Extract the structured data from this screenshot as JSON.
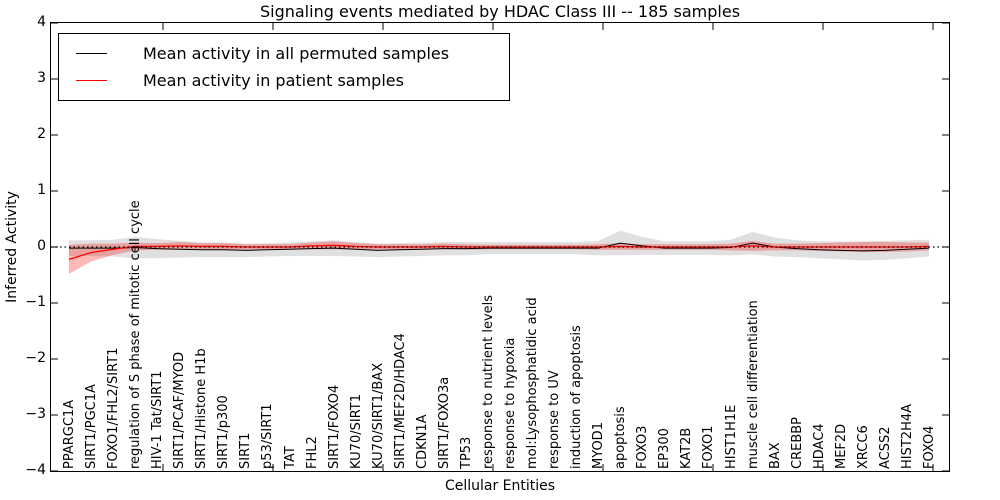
{
  "title": "Signaling events mediated by HDAC Class III -- 185 samples",
  "legend": [
    {
      "label": "Mean activity in all permuted samples",
      "color": "#000000"
    },
    {
      "label": "Mean activity in patient samples",
      "color": "#ff0000"
    }
  ],
  "colors": {
    "permuted_line": "#000000",
    "permuted_band": "rgba(0,0,0,0.12)",
    "patient_line": "#ff0000",
    "patient_band": "rgba(255,0,0,0.28)",
    "zero_line": "#000000"
  },
  "chart_data": {
    "type": "line",
    "title": "Signaling events mediated by HDAC Class III -- 185 samples",
    "xlabel": "Cellular Entities",
    "ylabel": "Inferred Activity",
    "ylim": [
      -4,
      4
    ],
    "ytick_labels": [
      "4",
      "3",
      "2",
      "1",
      "0",
      "−1",
      "−2",
      "−3",
      "−4"
    ],
    "ytick_values": [
      4,
      3,
      2,
      1,
      0,
      -1,
      -2,
      -3,
      -4
    ],
    "grid": false,
    "legend_position": "upper left",
    "zero_reference_line": 0,
    "categories": [
      "PPARGC1A",
      "SIRT1/PGC1A",
      "FOXO1/FHL2/SIRT1",
      "regulation of S phase of mitotic cell cycle",
      "HIV-1 Tat/SIRT1",
      "SIRT1/PCAF/MYOD",
      "SIRT1/Histone H1b",
      "SIRT1/p300",
      "SIRT1",
      "p53/SIRT1",
      "TAT",
      "FHL2",
      "SIRT1/FOXO4",
      "KU70/SIRT1",
      "KU70/SIRT1/BAX",
      "SIRT1/MEF2D/HDAC4",
      "CDKN1A",
      "SIRT1/FOXO3a",
      "TP53",
      "response to nutrient levels",
      "response to hypoxia",
      "mol:Lysophosphatidic acid",
      "response to UV",
      "induction of apoptosis",
      "MYOD1",
      "apoptosis",
      "FOXO3",
      "EP300",
      "KAT2B",
      "FOXO1",
      "HIST1H1E",
      "muscle cell differentiation",
      "BAX",
      "CREBBP",
      "HDAC4",
      "MEF2D",
      "XRCC6",
      "ACSS2",
      "HIST2H4A",
      "FOXO4"
    ],
    "series": [
      {
        "name": "Mean activity in all permuted samples",
        "color": "#000000",
        "values": [
          -0.02,
          -0.02,
          -0.02,
          -0.01,
          -0.03,
          -0.04,
          -0.05,
          -0.05,
          -0.06,
          -0.05,
          -0.04,
          -0.03,
          -0.02,
          -0.04,
          -0.06,
          -0.05,
          -0.04,
          -0.03,
          -0.03,
          -0.02,
          -0.02,
          -0.02,
          -0.02,
          -0.02,
          -0.02,
          0.07,
          0.02,
          -0.02,
          -0.02,
          -0.02,
          -0.01,
          0.07,
          0.0,
          -0.03,
          -0.05,
          -0.06,
          -0.07,
          -0.06,
          -0.04,
          -0.02
        ],
        "band_upper": [
          0.12,
          0.12,
          0.13,
          0.18,
          0.14,
          0.11,
          0.08,
          0.08,
          0.06,
          0.07,
          0.08,
          0.1,
          0.12,
          0.09,
          0.06,
          0.07,
          0.08,
          0.09,
          0.09,
          0.09,
          0.09,
          0.09,
          0.09,
          0.09,
          0.11,
          0.29,
          0.18,
          0.1,
          0.1,
          0.1,
          0.13,
          0.27,
          0.17,
          0.12,
          0.1,
          0.1,
          0.1,
          0.11,
          0.12,
          0.13
        ],
        "band_lower": [
          -0.16,
          -0.16,
          -0.17,
          -0.2,
          -0.2,
          -0.19,
          -0.18,
          -0.18,
          -0.18,
          -0.17,
          -0.16,
          -0.16,
          -0.16,
          -0.17,
          -0.18,
          -0.17,
          -0.16,
          -0.15,
          -0.15,
          -0.13,
          -0.13,
          -0.13,
          -0.13,
          -0.13,
          -0.15,
          -0.15,
          -0.14,
          -0.14,
          -0.14,
          -0.14,
          -0.15,
          -0.13,
          -0.17,
          -0.18,
          -0.2,
          -0.22,
          -0.24,
          -0.23,
          -0.2,
          -0.17
        ]
      },
      {
        "name": "Mean activity in patient samples",
        "color": "#ff0000",
        "values": [
          -0.22,
          -0.1,
          -0.04,
          0.01,
          0.01,
          0.02,
          0.01,
          0.01,
          0.0,
          0.0,
          0.0,
          0.02,
          0.03,
          0.01,
          0.0,
          0.0,
          0.0,
          0.01,
          0.0,
          0.0,
          0.0,
          0.0,
          0.0,
          0.0,
          0.0,
          0.01,
          0.0,
          0.0,
          0.0,
          0.0,
          0.0,
          0.02,
          0.0,
          0.0,
          0.0,
          0.0,
          0.0,
          0.0,
          0.0,
          0.01
        ],
        "band_upper": [
          0.04,
          0.06,
          0.06,
          0.08,
          0.07,
          0.09,
          0.07,
          0.07,
          0.05,
          0.05,
          0.05,
          0.08,
          0.1,
          0.07,
          0.05,
          0.05,
          0.05,
          0.06,
          0.05,
          0.04,
          0.04,
          0.04,
          0.04,
          0.04,
          0.05,
          0.07,
          0.05,
          0.05,
          0.05,
          0.05,
          0.06,
          0.11,
          0.06,
          0.06,
          0.07,
          0.08,
          0.09,
          0.09,
          0.08,
          0.08
        ],
        "band_lower": [
          -0.48,
          -0.26,
          -0.14,
          -0.06,
          -0.05,
          -0.05,
          -0.05,
          -0.05,
          -0.05,
          -0.05,
          -0.05,
          -0.04,
          -0.04,
          -0.05,
          -0.05,
          -0.05,
          -0.05,
          -0.04,
          -0.05,
          -0.04,
          -0.04,
          -0.04,
          -0.04,
          -0.04,
          -0.05,
          -0.05,
          -0.05,
          -0.05,
          -0.05,
          -0.05,
          -0.06,
          -0.07,
          -0.06,
          -0.06,
          -0.07,
          -0.08,
          -0.09,
          -0.09,
          -0.08,
          -0.06
        ]
      }
    ]
  }
}
